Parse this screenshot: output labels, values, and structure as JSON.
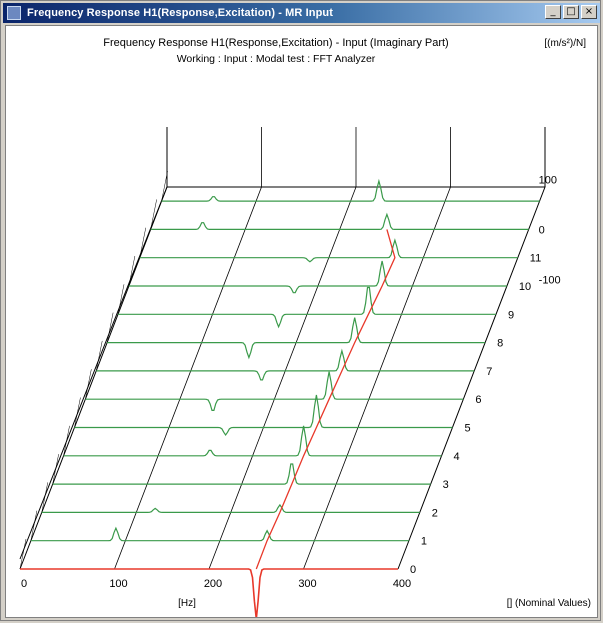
{
  "window": {
    "title": "Frequency Response H1(Response,Excitation) - MR Input",
    "controls": {
      "minimize": "_",
      "maximize": "□",
      "close": "×"
    }
  },
  "plot": {
    "header": {
      "title": "Frequency Response H1(Response,Excitation) - Input (Imaginary Part)",
      "units": "[(m/s²)/N]",
      "subtitle": "Working : Input : Modal test : FFT Analyzer"
    },
    "x_axis": {
      "ticks": [
        "0",
        "100",
        "200",
        "300",
        "400"
      ],
      "unit": "[Hz]"
    },
    "z_axis": {
      "ticks": [
        "0",
        "1",
        "2",
        "3",
        "4",
        "5",
        "6",
        "7",
        "8",
        "9",
        "10",
        "11"
      ],
      "label": "[] (Nominal Values)"
    },
    "y_axis": {
      "ticks": [
        "100",
        "0",
        "-100"
      ]
    }
  },
  "chart_data": {
    "type": "line",
    "title": "Frequency Response H1(Response,Excitation) - Input (Imaginary Part)",
    "subtitle": "Working : Input : Modal test : FFT Analyzer",
    "xlabel": "[Hz]",
    "ylabel": "[(m/s²)/N]",
    "zlabel": "[] (Nominal Values)",
    "xlim": [
      0,
      400
    ],
    "ylim": [
      -100,
      100
    ],
    "zlim": [
      0,
      12
    ],
    "colors": {
      "traces": "#3a9a4a",
      "highlight": "#e8382a",
      "grid": "#000000"
    },
    "peak_track_color": "#e8382a",
    "traces": [
      {
        "z": 0,
        "peaks": [
          {
            "x": 250,
            "y": -100
          }
        ]
      },
      {
        "z": 1,
        "peaks": [
          {
            "x": 90,
            "y": 25
          },
          {
            "x": 250,
            "y": 20
          }
        ]
      },
      {
        "z": 2,
        "peaks": [
          {
            "x": 120,
            "y": 8
          },
          {
            "x": 252,
            "y": 15
          }
        ]
      },
      {
        "z": 3,
        "peaks": [
          {
            "x": 253,
            "y": 45
          }
        ]
      },
      {
        "z": 4,
        "peaks": [
          {
            "x": 155,
            "y": 12
          },
          {
            "x": 254,
            "y": 60
          }
        ]
      },
      {
        "z": 5,
        "peaks": [
          {
            "x": 160,
            "y": -15
          },
          {
            "x": 256,
            "y": 65
          }
        ]
      },
      {
        "z": 6,
        "peaks": [
          {
            "x": 135,
            "y": -25
          },
          {
            "x": 258,
            "y": 55
          }
        ]
      },
      {
        "z": 7,
        "peaks": [
          {
            "x": 175,
            "y": -20
          },
          {
            "x": 260,
            "y": 40
          }
        ]
      },
      {
        "z": 8,
        "peaks": [
          {
            "x": 150,
            "y": -30
          },
          {
            "x": 262,
            "y": 50
          }
        ]
      },
      {
        "z": 9,
        "peaks": [
          {
            "x": 170,
            "y": -25
          },
          {
            "x": 265,
            "y": 60
          }
        ]
      },
      {
        "z": 10,
        "peaks": [
          {
            "x": 175,
            "y": -15
          },
          {
            "x": 268,
            "y": 50
          }
        ]
      },
      {
        "z": 11,
        "peaks": [
          {
            "x": 180,
            "y": -8
          },
          {
            "x": 270,
            "y": 35
          }
        ]
      },
      {
        "z": 12,
        "peaks": [
          {
            "x": 55,
            "y": 15
          },
          {
            "x": 250,
            "y": 30
          }
        ]
      },
      {
        "z": 13,
        "peaks": [
          {
            "x": 55,
            "y": 10
          },
          {
            "x": 230,
            "y": 40
          }
        ]
      }
    ],
    "highlight_trace_z": 0
  }
}
